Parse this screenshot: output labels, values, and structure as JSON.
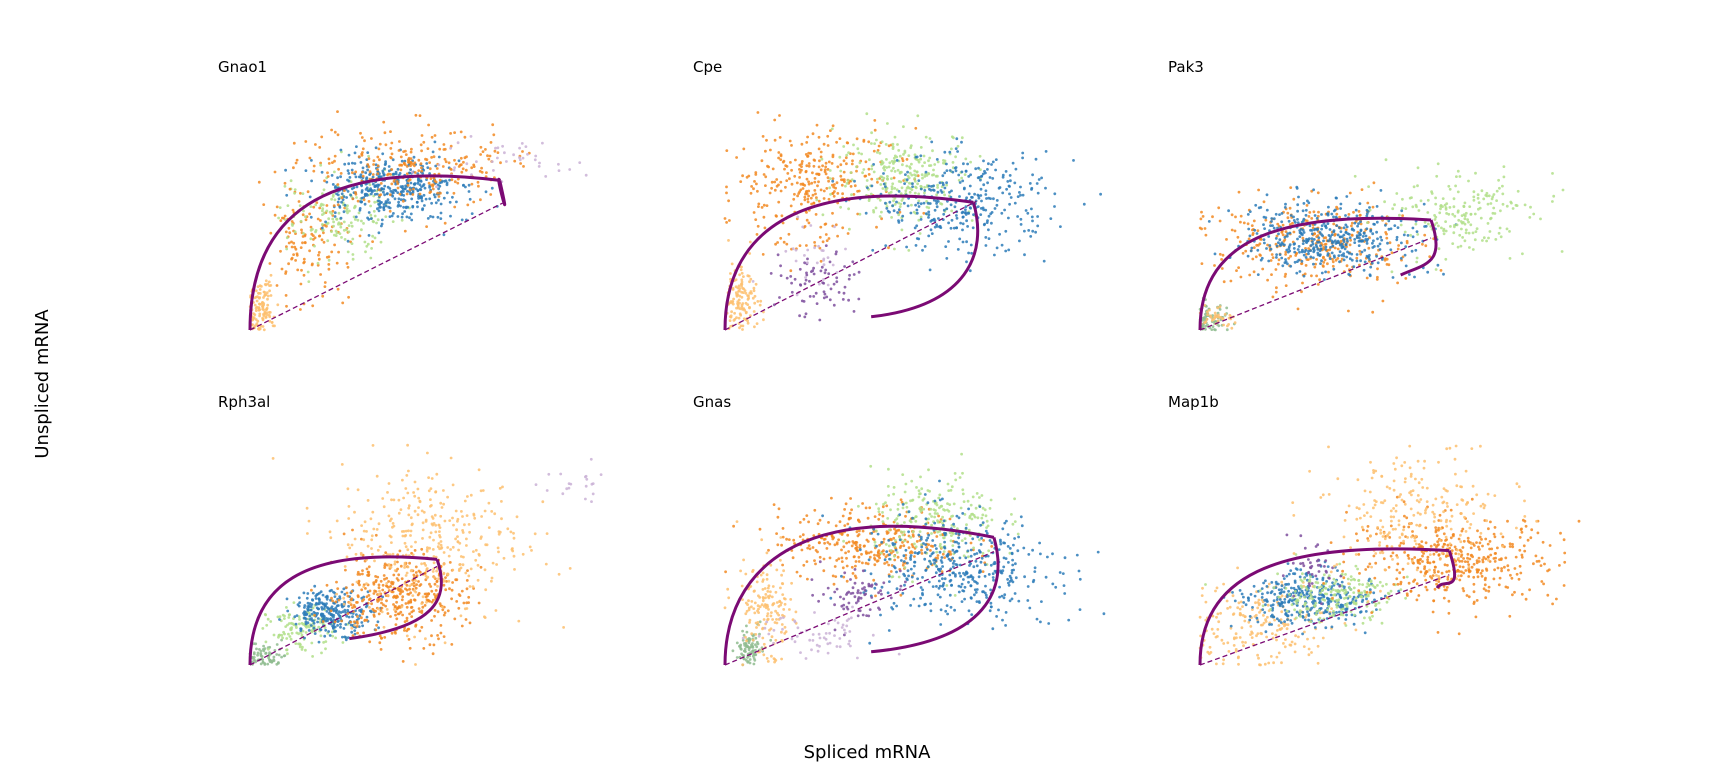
{
  "chart_data": {
    "type": "scatter",
    "xlabel": "Spliced mRNA",
    "ylabel": "Unspliced mRNA",
    "grid": false,
    "axes_visible": false,
    "colors": {
      "trajectory": "#7b0a74",
      "steady_state": "#7b0a74",
      "clusters": [
        "#f28a22",
        "#fdbf6f",
        "#2b7bb9",
        "#b2df8a",
        "#7e4f9e",
        "#cab2d6",
        "#8fbc8f"
      ]
    },
    "panels": [
      {
        "gene": "Gnao1",
        "xlim": [
          0,
          1.4
        ],
        "ylim": [
          0,
          1.0
        ],
        "clusters": [
          {
            "color": "#fdbf6f",
            "n": 120,
            "cx": 0.04,
            "cy": 0.1,
            "sx": 0.025,
            "sy": 0.07
          },
          {
            "color": "#f28a22",
            "n": 130,
            "cx": 0.22,
            "cy": 0.4,
            "sx": 0.07,
            "sy": 0.12
          },
          {
            "color": "#b2df8a",
            "n": 160,
            "cx": 0.32,
            "cy": 0.52,
            "sx": 0.1,
            "sy": 0.09
          },
          {
            "color": "#2b7bb9",
            "n": 420,
            "cx": 0.52,
            "cy": 0.64,
            "sx": 0.14,
            "sy": 0.07
          },
          {
            "color": "#f28a22",
            "n": 260,
            "cx": 0.6,
            "cy": 0.74,
            "sx": 0.18,
            "sy": 0.09
          },
          {
            "color": "#cab2d6",
            "n": 40,
            "cx": 0.95,
            "cy": 0.78,
            "sx": 0.12,
            "sy": 0.06
          }
        ],
        "trajectory": {
          "up_end": [
            0.92,
            0.68
          ],
          "up_bulge": 0.1,
          "down_end": [
            0.92,
            0.68
          ]
        },
        "steady_state": {
          "slope": 0.62,
          "x_end": 0.93
        }
      },
      {
        "gene": "Cpe",
        "xlim": [
          0,
          1.3
        ],
        "ylim": [
          0,
          1.0
        ],
        "clusters": [
          {
            "color": "#fdbf6f",
            "n": 130,
            "cx": 0.05,
            "cy": 0.14,
            "sx": 0.03,
            "sy": 0.08
          },
          {
            "color": "#f28a22",
            "n": 320,
            "cx": 0.3,
            "cy": 0.66,
            "sx": 0.14,
            "sy": 0.13
          },
          {
            "color": "#b2df8a",
            "n": 280,
            "cx": 0.62,
            "cy": 0.7,
            "sx": 0.12,
            "sy": 0.1
          },
          {
            "color": "#2b7bb9",
            "n": 340,
            "cx": 0.82,
            "cy": 0.58,
            "sx": 0.15,
            "sy": 0.11
          },
          {
            "color": "#7e4f9e",
            "n": 70,
            "cx": 0.32,
            "cy": 0.22,
            "sx": 0.08,
            "sy": 0.08
          },
          {
            "color": "#cab2d6",
            "n": 30,
            "cx": 0.3,
            "cy": 0.34,
            "sx": 0.06,
            "sy": 0.07
          }
        ],
        "trajectory": {
          "up_end": [
            0.85,
            0.58
          ],
          "up_bulge": 0.12,
          "down_end": [
            0.5,
            0.06
          ]
        },
        "steady_state": {
          "slope": 0.68,
          "x_end": 0.86
        }
      },
      {
        "gene": "Pak3",
        "xlim": [
          0,
          1.25
        ],
        "ylim": [
          0,
          1.0
        ],
        "clusters": [
          {
            "color": "#8fbc8f",
            "n": 80,
            "cx": 0.03,
            "cy": 0.05,
            "sx": 0.025,
            "sy": 0.04
          },
          {
            "color": "#fdbf6f",
            "n": 40,
            "cx": 0.05,
            "cy": 0.05,
            "sx": 0.03,
            "sy": 0.03
          },
          {
            "color": "#f28a22",
            "n": 330,
            "cx": 0.38,
            "cy": 0.39,
            "sx": 0.17,
            "sy": 0.1
          },
          {
            "color": "#2b7bb9",
            "n": 420,
            "cx": 0.42,
            "cy": 0.42,
            "sx": 0.14,
            "sy": 0.08
          },
          {
            "color": "#b2df8a",
            "n": 200,
            "cx": 0.86,
            "cy": 0.52,
            "sx": 0.12,
            "sy": 0.09
          }
        ],
        "trajectory": {
          "up_end": [
            0.76,
            0.5
          ],
          "up_bulge": 0.05,
          "down_end": [
            0.66,
            0.25
          ]
        },
        "steady_state": {
          "slope": 0.55,
          "x_end": 0.76
        }
      },
      {
        "gene": "Rph3al",
        "xlim": [
          0,
          1.3
        ],
        "ylim": [
          0,
          1.0
        ],
        "clusters": [
          {
            "color": "#8fbc8f",
            "n": 70,
            "cx": 0.05,
            "cy": 0.04,
            "sx": 0.03,
            "sy": 0.03
          },
          {
            "color": "#b2df8a",
            "n": 130,
            "cx": 0.18,
            "cy": 0.16,
            "sx": 0.06,
            "sy": 0.05
          },
          {
            "color": "#2b7bb9",
            "n": 260,
            "cx": 0.28,
            "cy": 0.24,
            "sx": 0.07,
            "sy": 0.05
          },
          {
            "color": "#f28a22",
            "n": 380,
            "cx": 0.5,
            "cy": 0.31,
            "sx": 0.12,
            "sy": 0.1
          },
          {
            "color": "#fdbf6f",
            "n": 360,
            "cx": 0.62,
            "cy": 0.56,
            "sx": 0.16,
            "sy": 0.18
          },
          {
            "color": "#cab2d6",
            "n": 20,
            "cx": 1.12,
            "cy": 0.82,
            "sx": 0.06,
            "sy": 0.05
          }
        ],
        "trajectory": {
          "up_end": [
            0.64,
            0.48
          ],
          "up_bulge": 0.06,
          "down_end": [
            0.34,
            0.12
          ]
        },
        "steady_state": {
          "slope": 0.7,
          "x_end": 0.64
        }
      },
      {
        "gene": "Gnas",
        "xlim": [
          0,
          1.3
        ],
        "ylim": [
          0,
          1.0
        ],
        "clusters": [
          {
            "color": "#8fbc8f",
            "n": 90,
            "cx": 0.08,
            "cy": 0.08,
            "sx": 0.02,
            "sy": 0.04
          },
          {
            "color": "#fdbf6f",
            "n": 160,
            "cx": 0.14,
            "cy": 0.26,
            "sx": 0.05,
            "sy": 0.11
          },
          {
            "color": "#f28a22",
            "n": 330,
            "cx": 0.5,
            "cy": 0.56,
            "sx": 0.16,
            "sy": 0.08
          },
          {
            "color": "#b2df8a",
            "n": 230,
            "cx": 0.72,
            "cy": 0.66,
            "sx": 0.11,
            "sy": 0.11
          },
          {
            "color": "#2b7bb9",
            "n": 420,
            "cx": 0.8,
            "cy": 0.44,
            "sx": 0.16,
            "sy": 0.12
          },
          {
            "color": "#7e4f9e",
            "n": 70,
            "cx": 0.45,
            "cy": 0.3,
            "sx": 0.06,
            "sy": 0.06
          },
          {
            "color": "#cab2d6",
            "n": 60,
            "cx": 0.32,
            "cy": 0.14,
            "sx": 0.1,
            "sy": 0.05
          }
        ],
        "trajectory": {
          "up_end": [
            0.92,
            0.58
          ],
          "up_bulge": 0.18,
          "down_end": [
            0.5,
            0.06
          ]
        },
        "steady_state": {
          "slope": 0.56,
          "x_end": 0.92
        }
      },
      {
        "gene": "Map1b",
        "xlim": [
          0,
          1.25
        ],
        "ylim": [
          0,
          1.0
        ],
        "clusters": [
          {
            "color": "#fdbf6f",
            "n": 200,
            "cx": 0.2,
            "cy": 0.18,
            "sx": 0.12,
            "sy": 0.1
          },
          {
            "color": "#2b7bb9",
            "n": 340,
            "cx": 0.36,
            "cy": 0.3,
            "sx": 0.11,
            "sy": 0.06
          },
          {
            "color": "#b2df8a",
            "n": 200,
            "cx": 0.44,
            "cy": 0.32,
            "sx": 0.1,
            "sy": 0.06
          },
          {
            "color": "#7e4f9e",
            "n": 40,
            "cx": 0.36,
            "cy": 0.42,
            "sx": 0.05,
            "sy": 0.06
          },
          {
            "color": "#f28a22",
            "n": 420,
            "cx": 0.84,
            "cy": 0.48,
            "sx": 0.17,
            "sy": 0.1
          },
          {
            "color": "#fdbf6f",
            "n": 230,
            "cx": 0.7,
            "cy": 0.68,
            "sx": 0.14,
            "sy": 0.13
          }
        ],
        "trajectory": {
          "up_end": [
            0.82,
            0.52
          ],
          "up_bulge": 0.05,
          "down_end": [
            0.78,
            0.35
          ]
        },
        "steady_state": {
          "slope": 0.5,
          "x_end": 0.82
        }
      }
    ]
  }
}
